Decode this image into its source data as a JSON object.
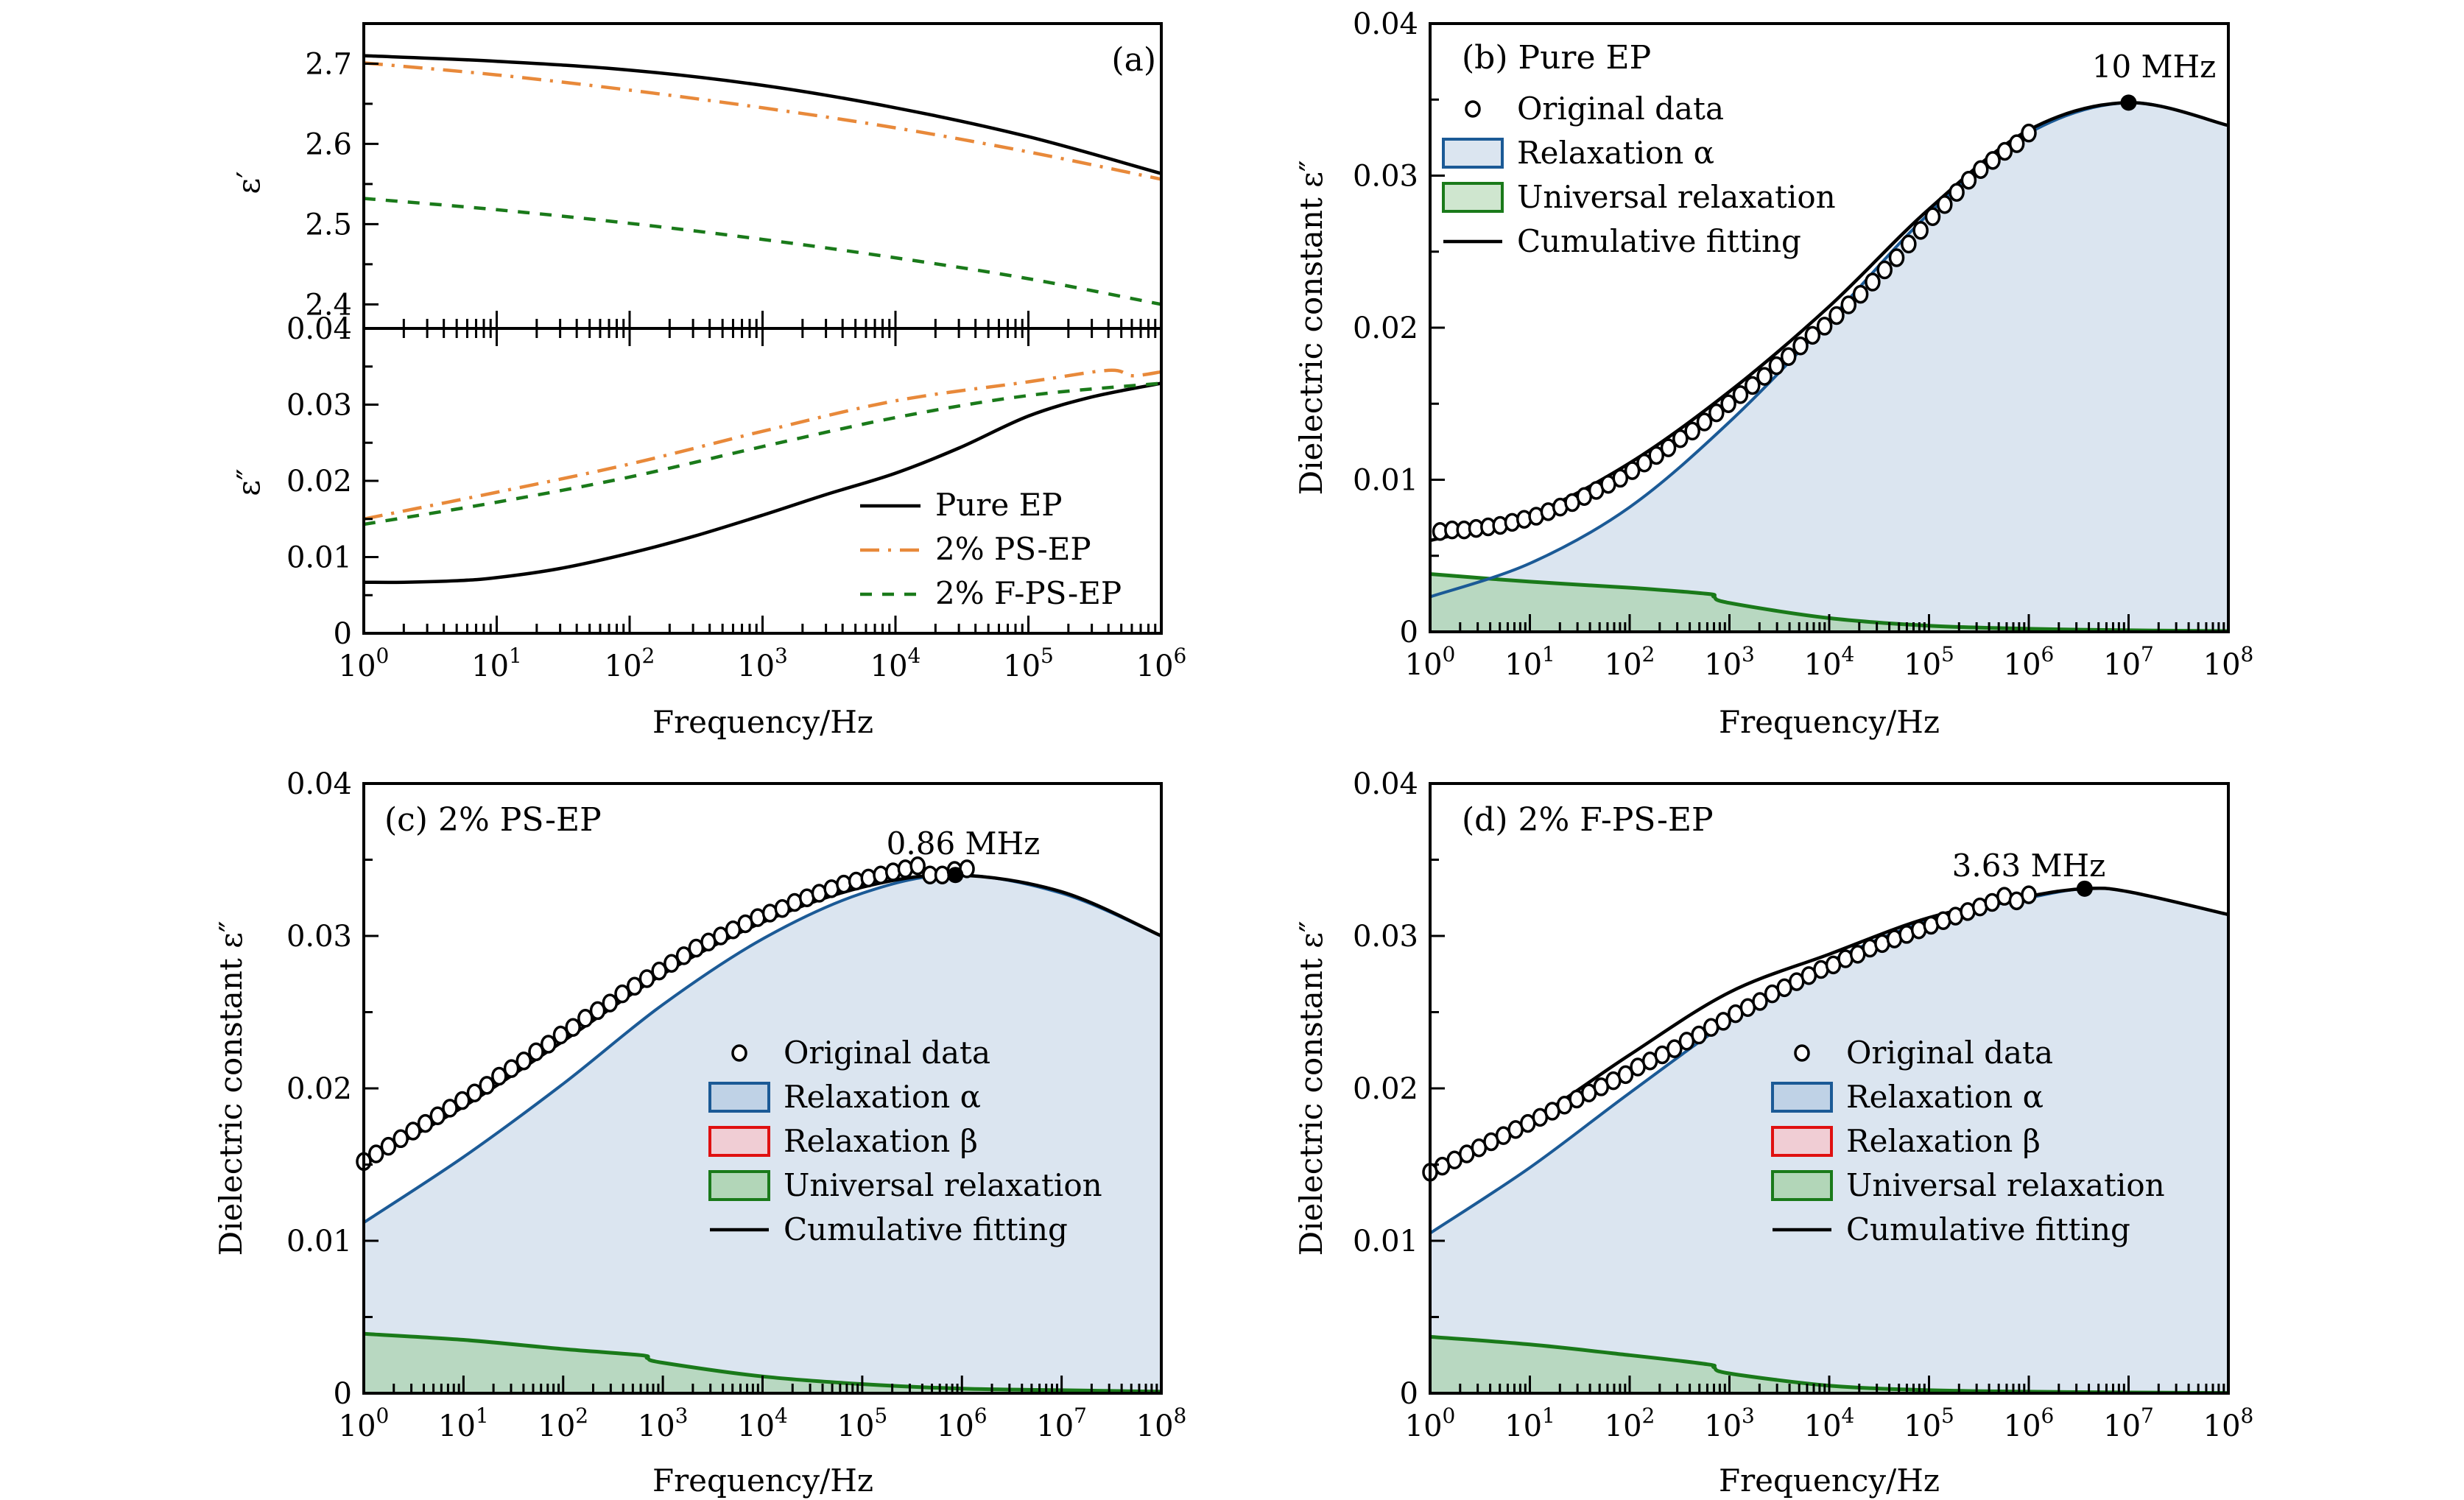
{
  "figure": {
    "colors": {
      "pure_ep": "#000000",
      "ps_ep": "#e8893a",
      "fps_ep": "#1a7a1a",
      "alpha_fill": "#dbe5f0",
      "alpha_stroke": "#1b5a96",
      "alpha_legend_fill_b": "#dbe5f0",
      "alpha_legend_fill_cd": "#bfd2e6",
      "beta_fill": "#f0cdd4",
      "beta_stroke": "#e01010",
      "universal_fill": "#b2d6b8",
      "universal_legend_fill_b": "#cfe6cf",
      "universal_stroke": "#1a7a1a",
      "fit_line": "#000000"
    }
  },
  "chart_data": [
    {
      "id": "a-upper",
      "type": "line",
      "panel_label": "(a)",
      "xlabel": "",
      "ylabel": "ε′",
      "xscale": "log",
      "xlim": [
        1,
        1000000
      ],
      "ylim": [
        2.37,
        2.75
      ],
      "yticks": [
        2.4,
        2.5,
        2.6,
        2.7
      ],
      "ytick_labels": [
        "2.4",
        "2.5",
        "2.6",
        "2.7"
      ],
      "series": [
        {
          "name": "Pure EP",
          "style": "solid",
          "x": [
            1,
            10,
            100,
            1000,
            10000,
            100000,
            1000000
          ],
          "y": [
            2.71,
            2.703,
            2.692,
            2.673,
            2.645,
            2.609,
            2.563
          ]
        },
        {
          "name": "2% PS-EP",
          "style": "dashdot",
          "x": [
            1,
            10,
            100,
            1000,
            10000,
            100000,
            1000000
          ],
          "y": [
            2.701,
            2.686,
            2.667,
            2.645,
            2.62,
            2.59,
            2.556
          ]
        },
        {
          "name": "2% F-PS-EP",
          "style": "dashed",
          "x": [
            1,
            10,
            100,
            1000,
            10000,
            100000,
            1000000
          ],
          "y": [
            2.532,
            2.518,
            2.501,
            2.481,
            2.458,
            2.432,
            2.4
          ]
        }
      ]
    },
    {
      "id": "a-lower",
      "type": "line",
      "panel_label": "",
      "xlabel": "Frequency/Hz",
      "ylabel": "ε″",
      "xscale": "log",
      "xlim": [
        1,
        1000000
      ],
      "ylim": [
        0,
        0.04
      ],
      "xticks": [
        1,
        10,
        100,
        1000,
        10000,
        100000,
        1000000
      ],
      "xtick_labels": [
        [
          "10",
          "0"
        ],
        [
          "10",
          "1"
        ],
        [
          "10",
          "2"
        ],
        [
          "10",
          "3"
        ],
        [
          "10",
          "4"
        ],
        [
          "10",
          "5"
        ],
        [
          "10",
          "6"
        ]
      ],
      "yticks": [
        0,
        0.01,
        0.02,
        0.03,
        0.04
      ],
      "ytick_labels": [
        "0",
        "0.01",
        "0.02",
        "0.03",
        "0.04"
      ],
      "legend": {
        "position": "lower-right",
        "entries": [
          "Pure EP",
          "2% PS-EP",
          "2% F-PS-EP"
        ]
      },
      "series": [
        {
          "name": "Pure EP",
          "style": "solid",
          "x": [
            1,
            2,
            5,
            10,
            30,
            100,
            300,
            1000,
            3000,
            10000,
            30000,
            100000,
            300000,
            1000000
          ],
          "y": [
            0.0067,
            0.0067,
            0.0069,
            0.0073,
            0.0085,
            0.0105,
            0.0127,
            0.0155,
            0.0182,
            0.021,
            0.0243,
            0.0285,
            0.031,
            0.0328
          ]
        },
        {
          "name": "2% PS-EP",
          "style": "dashdot",
          "x": [
            1,
            10,
            100,
            1000,
            10000,
            100000,
            400000,
            600000,
            1000000
          ],
          "y": [
            0.015,
            0.0185,
            0.0222,
            0.0265,
            0.0305,
            0.033,
            0.0345,
            0.0338,
            0.0343
          ]
        },
        {
          "name": "2% F-PS-EP",
          "style": "dashed",
          "x": [
            1,
            10,
            100,
            1000,
            10000,
            100000,
            1000000
          ],
          "y": [
            0.0143,
            0.0172,
            0.0205,
            0.0245,
            0.0283,
            0.0312,
            0.0328
          ]
        }
      ]
    },
    {
      "id": "b",
      "type": "area",
      "panel_label": "(b) Pure EP",
      "xlabel": "Frequency/Hz",
      "ylabel": "Dielectric constant ε″",
      "xscale": "log",
      "xlim": [
        1,
        100000000
      ],
      "ylim": [
        0,
        0.04
      ],
      "xticks": [
        1,
        10,
        100,
        1000,
        10000,
        100000,
        1000000,
        10000000,
        100000000
      ],
      "xtick_labels": [
        [
          "10",
          "0"
        ],
        [
          "10",
          "1"
        ],
        [
          "10",
          "2"
        ],
        [
          "10",
          "3"
        ],
        [
          "10",
          "4"
        ],
        [
          "10",
          "5"
        ],
        [
          "10",
          "6"
        ],
        [
          "10",
          "7"
        ],
        [
          "10",
          "8"
        ]
      ],
      "yticks": [
        0,
        0.01,
        0.02,
        0.03,
        0.04
      ],
      "ytick_labels": [
        "0",
        "0.01",
        "0.02",
        "0.03",
        "0.04"
      ],
      "peak": {
        "label": "10 MHz",
        "x": 10000000,
        "y": 0.0348
      },
      "legend": {
        "position": "top-left",
        "entries": [
          "Original data",
          "Relaxation α",
          "Universal relaxation",
          "Cumulative fitting"
        ]
      },
      "relaxation_alpha": {
        "x": [
          1,
          10,
          100,
          1000,
          10000,
          100000,
          1000000,
          10000000,
          100000000
        ],
        "y": [
          0.0023,
          0.0045,
          0.0082,
          0.0138,
          0.0205,
          0.0275,
          0.0328,
          0.0348,
          0.0333
        ]
      },
      "universal": {
        "x": [
          1,
          10,
          100,
          600,
          700,
          1000,
          10000,
          100000,
          1000000,
          10000000,
          100000000
        ],
        "y": [
          0.0038,
          0.0033,
          0.0029,
          0.0025,
          0.0023,
          0.0019,
          0.0009,
          0.0004,
          0.0002,
          0.0001,
          5e-05
        ]
      },
      "cumulative": {
        "x": [
          1,
          10,
          100,
          1000,
          10000,
          100000,
          1000000,
          10000000,
          100000000
        ],
        "y": [
          0.006,
          0.0077,
          0.0111,
          0.0158,
          0.0214,
          0.0278,
          0.033,
          0.0348,
          0.0333
        ]
      },
      "original": {
        "x_log_start": 0.1,
        "x_log_end": 6.0,
        "count": 50,
        "y": [
          0.0066,
          0.0067,
          0.0067,
          0.0068,
          0.0069,
          0.007,
          0.0072,
          0.0074,
          0.0076,
          0.0079,
          0.0082,
          0.0085,
          0.0089,
          0.0093,
          0.0097,
          0.0101,
          0.0106,
          0.0111,
          0.0116,
          0.0121,
          0.0127,
          0.0132,
          0.0138,
          0.0144,
          0.015,
          0.0156,
          0.0162,
          0.0168,
          0.0175,
          0.0181,
          0.0188,
          0.0195,
          0.0201,
          0.0208,
          0.0215,
          0.0222,
          0.023,
          0.0238,
          0.0246,
          0.0255,
          0.0264,
          0.0273,
          0.0281,
          0.0289,
          0.0297,
          0.0304,
          0.031,
          0.0316,
          0.0321,
          0.0328
        ]
      }
    },
    {
      "id": "c",
      "type": "area",
      "panel_label": "(c) 2% PS-EP",
      "xlabel": "Frequency/Hz",
      "ylabel": "Dielectric constant ε″",
      "xscale": "log",
      "xlim": [
        1,
        100000000
      ],
      "ylim": [
        0,
        0.04
      ],
      "xticks": [
        1,
        10,
        100,
        1000,
        10000,
        100000,
        1000000,
        10000000,
        100000000
      ],
      "xtick_labels": [
        [
          "10",
          "0"
        ],
        [
          "10",
          "1"
        ],
        [
          "10",
          "2"
        ],
        [
          "10",
          "3"
        ],
        [
          "10",
          "4"
        ],
        [
          "10",
          "5"
        ],
        [
          "10",
          "6"
        ],
        [
          "10",
          "7"
        ],
        [
          "10",
          "8"
        ]
      ],
      "yticks": [
        0,
        0.01,
        0.02,
        0.03,
        0.04
      ],
      "ytick_labels": [
        "0",
        "0.01",
        "0.02",
        "0.03",
        "0.04"
      ],
      "peak": {
        "label": "0.86 MHz",
        "x": 860000,
        "y": 0.034
      },
      "legend": {
        "position": "center-right",
        "entries": [
          "Original data",
          "Relaxation α",
          "Relaxation β",
          "Universal relaxation",
          "Cumulative fitting"
        ]
      },
      "relaxation_alpha": {
        "x": [
          1,
          10,
          100,
          1000,
          10000,
          100000,
          860000,
          10000000,
          100000000
        ],
        "y": [
          0.0112,
          0.0155,
          0.0203,
          0.0255,
          0.0298,
          0.0328,
          0.034,
          0.0328,
          0.03
        ]
      },
      "universal": {
        "x": [
          1,
          10,
          100,
          600,
          700,
          1000,
          10000,
          100000,
          1000000,
          10000000,
          100000000
        ],
        "y": [
          0.0039,
          0.0035,
          0.0029,
          0.0025,
          0.0023,
          0.002,
          0.0011,
          0.0006,
          0.0003,
          0.0002,
          0.0001
        ]
      },
      "cumulative": {
        "x": [
          1,
          10,
          100,
          1000,
          10000,
          100000,
          860000,
          10000000,
          100000000
        ],
        "y": [
          0.0151,
          0.0188,
          0.0231,
          0.0275,
          0.0309,
          0.0332,
          0.034,
          0.0329,
          0.03
        ]
      },
      "original": {
        "x_log_start": 0.0,
        "x_log_end": 6.05,
        "count": 50,
        "y": [
          0.0152,
          0.0157,
          0.0162,
          0.0167,
          0.0172,
          0.0177,
          0.0182,
          0.0187,
          0.0192,
          0.0197,
          0.0202,
          0.0208,
          0.0213,
          0.0218,
          0.0224,
          0.0229,
          0.0235,
          0.024,
          0.0246,
          0.0251,
          0.0256,
          0.0262,
          0.0267,
          0.0272,
          0.0277,
          0.0282,
          0.0287,
          0.0292,
          0.0296,
          0.03,
          0.0304,
          0.0308,
          0.0312,
          0.0315,
          0.0318,
          0.0322,
          0.0325,
          0.0328,
          0.0331,
          0.0334,
          0.0336,
          0.0338,
          0.034,
          0.0342,
          0.0344,
          0.0346,
          0.034,
          0.034,
          0.0343,
          0.0344
        ]
      }
    },
    {
      "id": "d",
      "type": "area",
      "panel_label": "(d) 2% F-PS-EP",
      "xlabel": "Frequency/Hz",
      "ylabel": "Dielectric constant ε″",
      "xscale": "log",
      "xlim": [
        1,
        100000000
      ],
      "ylim": [
        0,
        0.04
      ],
      "xticks": [
        1,
        10,
        100,
        1000,
        10000,
        100000,
        1000000,
        10000000,
        100000000
      ],
      "xtick_labels": [
        [
          "10",
          "0"
        ],
        [
          "10",
          "1"
        ],
        [
          "10",
          "2"
        ],
        [
          "10",
          "3"
        ],
        [
          "10",
          "4"
        ],
        [
          "10",
          "5"
        ],
        [
          "10",
          "6"
        ],
        [
          "10",
          "7"
        ],
        [
          "10",
          "8"
        ]
      ],
      "yticks": [
        0,
        0.01,
        0.02,
        0.03,
        0.04
      ],
      "ytick_labels": [
        "0",
        "0.01",
        "0.02",
        "0.03",
        "0.04"
      ],
      "peak": {
        "label": "3.63 MHz",
        "x": 3630000,
        "y": 0.0331
      },
      "legend": {
        "position": "center-right",
        "entries": [
          "Original data",
          "Relaxation α",
          "Relaxation β",
          "Universal relaxation",
          "Cumulative fitting"
        ]
      },
      "relaxation_alpha": {
        "x": [
          1,
          10,
          100,
          1000,
          10000,
          100000,
          1000000,
          3630000,
          10000000,
          100000000
        ],
        "y": [
          0.0105,
          0.0148,
          0.0197,
          0.0244,
          0.0283,
          0.031,
          0.0325,
          0.0331,
          0.0329,
          0.0314
        ]
      },
      "universal": {
        "x": [
          1,
          10,
          100,
          600,
          700,
          1000,
          10000,
          100000,
          1000000,
          10000000,
          100000000
        ],
        "y": [
          0.0037,
          0.0032,
          0.0025,
          0.0019,
          0.0017,
          0.0013,
          0.0005,
          0.0002,
          0.0001,
          5e-05,
          2e-05
        ]
      },
      "cumulative": {
        "x": [
          1,
          10,
          100,
          1000,
          10000,
          100000,
          1000000,
          3630000,
          10000000,
          100000000
        ],
        "y": [
          0.0142,
          0.0178,
          0.0222,
          0.0263,
          0.0288,
          0.0312,
          0.0326,
          0.0331,
          0.0329,
          0.0314
        ]
      },
      "original": {
        "x_log_start": 0.0,
        "x_log_end": 6.0,
        "count": 50,
        "y": [
          0.0145,
          0.0149,
          0.0153,
          0.0157,
          0.0161,
          0.0165,
          0.0169,
          0.0173,
          0.0177,
          0.0181,
          0.0185,
          0.0189,
          0.0193,
          0.0197,
          0.0201,
          0.0205,
          0.0209,
          0.0214,
          0.0218,
          0.0222,
          0.0226,
          0.0231,
          0.0235,
          0.024,
          0.0244,
          0.0249,
          0.0253,
          0.0257,
          0.0262,
          0.0266,
          0.027,
          0.0274,
          0.0278,
          0.0281,
          0.0285,
          0.0288,
          0.0292,
          0.0295,
          0.0298,
          0.0301,
          0.0304,
          0.0307,
          0.031,
          0.0313,
          0.0316,
          0.0319,
          0.0322,
          0.0326,
          0.0323,
          0.0327
        ]
      }
    }
  ],
  "legends": {
    "a": [
      "Pure EP",
      "2% PS-EP",
      "2% F-PS-EP"
    ],
    "b": [
      "Original data",
      "Relaxation α",
      "Universal relaxation",
      "Cumulative fitting"
    ],
    "c": [
      "Original data",
      "Relaxation α",
      "Relaxation β",
      "Universal relaxation",
      "Cumulative fitting"
    ],
    "d": [
      "Original data",
      "Relaxation α",
      "Relaxation β",
      "Universal relaxation",
      "Cumulative fitting"
    ]
  },
  "labels": {
    "a_panel": "(a)",
    "a_ylabel_upper": "ε′",
    "a_ylabel_lower": "ε″",
    "a_xlabel": "Frequency/Hz",
    "b_panel": "(b) Pure EP",
    "b_peak": "10 MHz",
    "b_ylabel": "Dielectric constant ε″",
    "b_xlabel": "Frequency/Hz",
    "c_panel": "(c) 2% PS-EP",
    "c_peak": "0.86 MHz",
    "c_ylabel": "Dielectric constant ε″",
    "c_xlabel": "Frequency/Hz",
    "d_panel": "(d) 2% F-PS-EP",
    "d_peak": "3.63 MHz",
    "d_ylabel": "Dielectric constant ε″",
    "d_xlabel": "Frequency/Hz"
  }
}
